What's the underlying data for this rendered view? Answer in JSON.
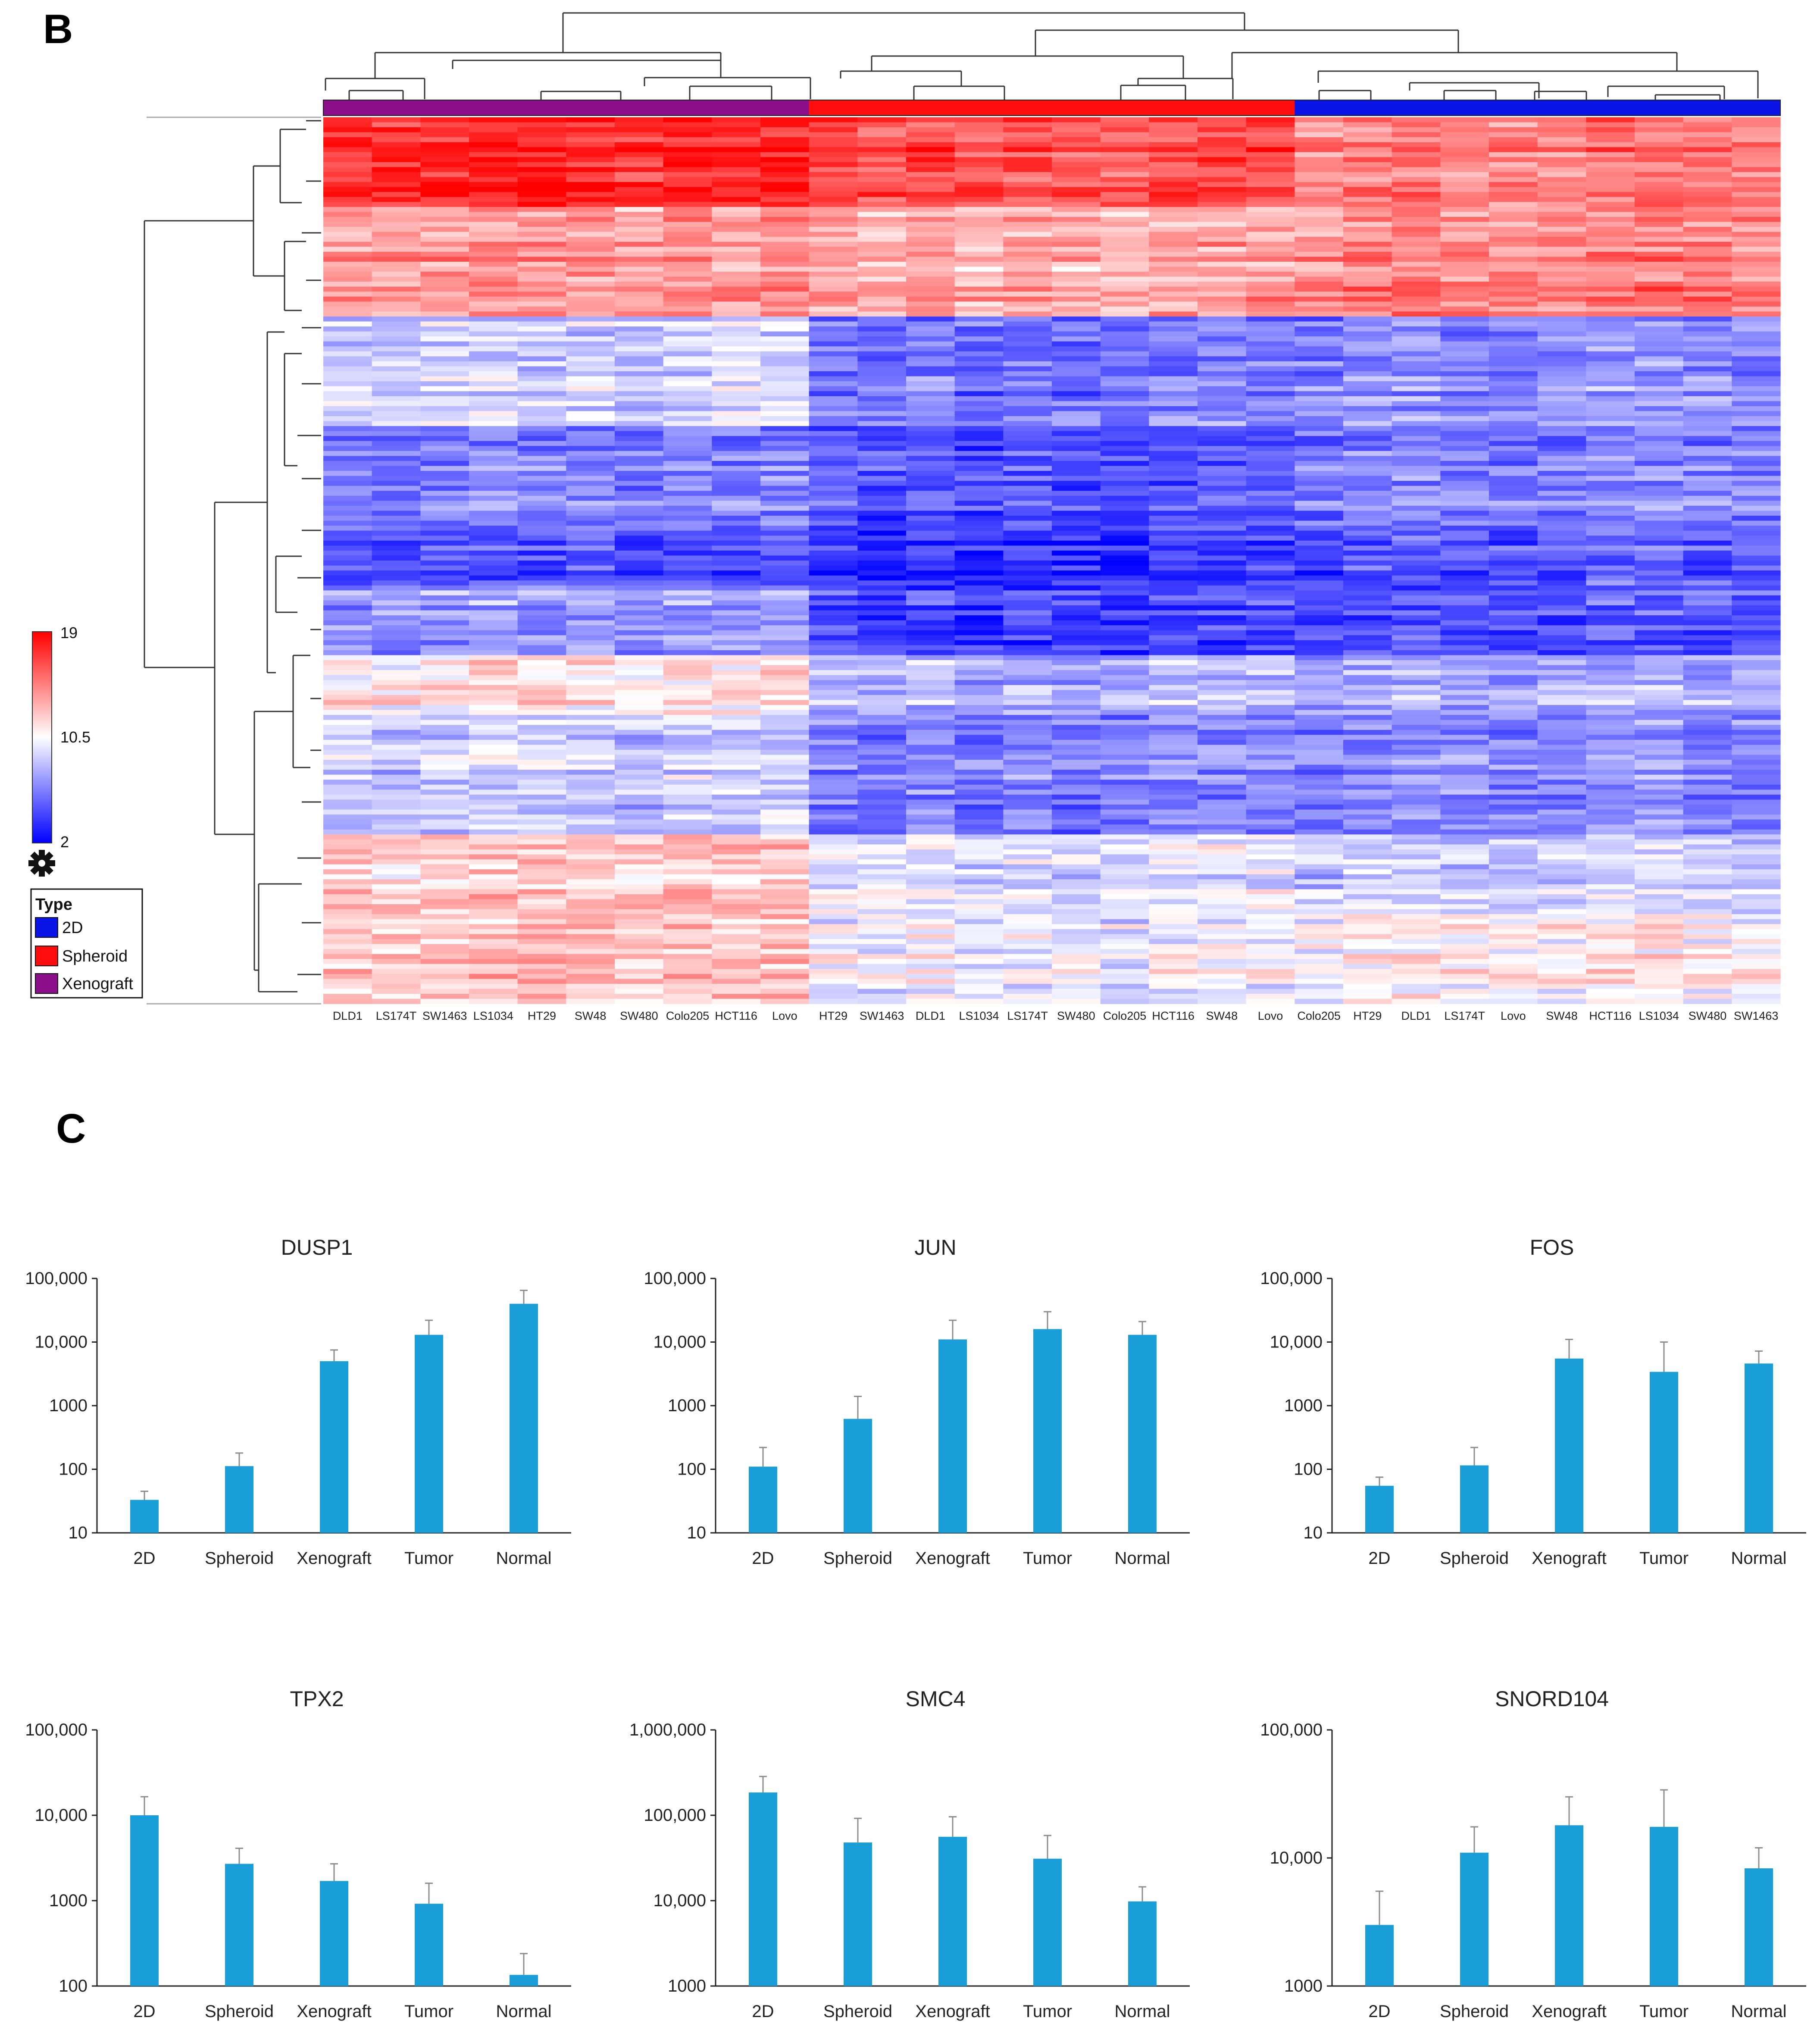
{
  "panels": {
    "heatmap_letter": "B",
    "bars_letter": "C"
  },
  "heatmap": {
    "group_colors": {
      "2D": "#0a14e6",
      "Spheroid": "#ff0d0d",
      "Xenograft": "#8b0f8b"
    },
    "color_scale": {
      "low_color": "#0000ff",
      "mid_color": "#ffffff",
      "high_color": "#ff0000",
      "max_label": "19",
      "mid_label": "10.5",
      "min_label": "2"
    },
    "legend": {
      "title": "Type",
      "items": [
        "2D",
        "Spheroid",
        "Xenograft"
      ]
    },
    "columns": [
      {
        "label": "DLD1",
        "group": "Xenograft"
      },
      {
        "label": "LS174T",
        "group": "Xenograft"
      },
      {
        "label": "SW1463",
        "group": "Xenograft"
      },
      {
        "label": "LS1034",
        "group": "Xenograft"
      },
      {
        "label": "HT29",
        "group": "Xenograft"
      },
      {
        "label": "SW48",
        "group": "Xenograft"
      },
      {
        "label": "SW480",
        "group": "Xenograft"
      },
      {
        "label": "Colo205",
        "group": "Xenograft"
      },
      {
        "label": "HCT116",
        "group": "Xenograft"
      },
      {
        "label": "Lovo",
        "group": "Xenograft"
      },
      {
        "label": "HT29",
        "group": "Spheroid"
      },
      {
        "label": "SW1463",
        "group": "Spheroid"
      },
      {
        "label": "DLD1",
        "group": "Spheroid"
      },
      {
        "label": "LS1034",
        "group": "Spheroid"
      },
      {
        "label": "LS174T",
        "group": "Spheroid"
      },
      {
        "label": "SW480",
        "group": "Spheroid"
      },
      {
        "label": "Colo205",
        "group": "Spheroid"
      },
      {
        "label": "HCT116",
        "group": "Spheroid"
      },
      {
        "label": "SW48",
        "group": "Spheroid"
      },
      {
        "label": "Lovo",
        "group": "Spheroid"
      },
      {
        "label": "Colo205",
        "group": "2D"
      },
      {
        "label": "HT29",
        "group": "2D"
      },
      {
        "label": "DLD1",
        "group": "2D"
      },
      {
        "label": "LS174T",
        "group": "2D"
      },
      {
        "label": "Lovo",
        "group": "2D"
      },
      {
        "label": "SW48",
        "group": "2D"
      },
      {
        "label": "HCT116",
        "group": "2D"
      },
      {
        "label": "LS1034",
        "group": "2D"
      },
      {
        "label": "SW480",
        "group": "2D"
      },
      {
        "label": "SW1463",
        "group": "2D"
      }
    ],
    "row_blocks": [
      {
        "rows": 18,
        "xeno": 17.8,
        "sph": 16.5,
        "twod": 15.0
      },
      {
        "rows": 14,
        "xeno": 13.8,
        "sph": 13.3,
        "twod": 14.4
      },
      {
        "rows": 8,
        "xeno": 13.9,
        "sph": 13.6,
        "twod": 15.0
      },
      {
        "rows": 22,
        "xeno": 8.8,
        "sph": 6.0,
        "twod": 6.8
      },
      {
        "rows": 20,
        "xeno": 6.2,
        "sph": 4.8,
        "twod": 6.4
      },
      {
        "rows": 12,
        "xeno": 4.5,
        "sph": 3.6,
        "twod": 5.0
      },
      {
        "rows": 14,
        "xeno": 7.0,
        "sph": 4.2,
        "twod": 4.8
      },
      {
        "rows": 12,
        "xeno": 11.2,
        "sph": 8.0,
        "twod": 7.8
      },
      {
        "rows": 24,
        "xeno": 8.8,
        "sph": 6.4,
        "twod": 6.8
      },
      {
        "rows": 16,
        "xeno": 12.0,
        "sph": 9.4,
        "twod": 8.8
      },
      {
        "rows": 18,
        "xeno": 12.4,
        "sph": 10.0,
        "twod": 11.0
      }
    ]
  },
  "chart_data": [
    {
      "type": "bar",
      "title": "DUSP1",
      "scale": "log",
      "categories": [
        "2D",
        "Spheroid",
        "Xenograft",
        "Tumor",
        "Normal"
      ],
      "values": [
        33,
        112,
        5000,
        13000,
        40000
      ],
      "error_upper": [
        45,
        180,
        7500,
        22000,
        65000
      ],
      "ylim": [
        10,
        100000
      ],
      "ytick_values": [
        10,
        100,
        1000,
        10000,
        100000
      ],
      "ytick_labels": [
        "10",
        "100",
        "1000",
        "10,000",
        "100,000"
      ],
      "bar_color": "#1a9ed8"
    },
    {
      "type": "bar",
      "title": "JUN",
      "scale": "log",
      "categories": [
        "2D",
        "Spheroid",
        "Xenograft",
        "Tumor",
        "Normal"
      ],
      "values": [
        110,
        620,
        11000,
        16000,
        13000
      ],
      "error_upper": [
        220,
        1400,
        22000,
        30000,
        21000
      ],
      "ylim": [
        10,
        100000
      ],
      "ytick_values": [
        10,
        100,
        1000,
        10000,
        100000
      ],
      "ytick_labels": [
        "10",
        "100",
        "1000",
        "10,000",
        "100,000"
      ],
      "bar_color": "#1a9ed8"
    },
    {
      "type": "bar",
      "title": "FOS",
      "scale": "log",
      "categories": [
        "2D",
        "Spheroid",
        "Xenograft",
        "Tumor",
        "Normal"
      ],
      "values": [
        55,
        115,
        5500,
        3400,
        4600
      ],
      "error_upper": [
        75,
        220,
        11000,
        10000,
        7200
      ],
      "ylim": [
        10,
        100000
      ],
      "ytick_values": [
        10,
        100,
        1000,
        10000,
        100000
      ],
      "ytick_labels": [
        "10",
        "100",
        "1000",
        "10,000",
        "100,000"
      ],
      "bar_color": "#1a9ed8"
    },
    {
      "type": "bar",
      "title": "TPX2",
      "scale": "log",
      "categories": [
        "2D",
        "Spheroid",
        "Xenograft",
        "Tumor",
        "Normal"
      ],
      "values": [
        10000,
        2700,
        1700,
        920,
        135
      ],
      "error_upper": [
        16500,
        4100,
        2700,
        1600,
        240
      ],
      "ylim": [
        100,
        100000
      ],
      "ytick_values": [
        100,
        1000,
        10000,
        100000
      ],
      "ytick_labels": [
        "100",
        "1000",
        "10,000",
        "100,000"
      ],
      "bar_color": "#1a9ed8"
    },
    {
      "type": "bar",
      "title": "SMC4",
      "scale": "log",
      "categories": [
        "2D",
        "Spheroid",
        "Xenograft",
        "Tumor",
        "Normal"
      ],
      "values": [
        185000,
        48000,
        56000,
        31000,
        9800
      ],
      "error_upper": [
        285000,
        92000,
        96000,
        58000,
        14500
      ],
      "ylim": [
        1000,
        1000000
      ],
      "ytick_values": [
        1000,
        10000,
        100000,
        1000000
      ],
      "ytick_labels": [
        "1000",
        "10,000",
        "100,000",
        "1,000,000"
      ],
      "bar_color": "#1a9ed8"
    },
    {
      "type": "bar",
      "title": "SNORD104",
      "scale": "log",
      "categories": [
        "2D",
        "Spheroid",
        "Xenograft",
        "Tumor",
        "Normal"
      ],
      "values": [
        3000,
        11000,
        18000,
        17500,
        8300
      ],
      "error_upper": [
        5500,
        17500,
        30000,
        34000,
        12000
      ],
      "ylim": [
        1000,
        100000
      ],
      "ytick_values": [
        1000,
        10000,
        100000
      ],
      "ytick_labels": [
        "1000",
        "10,000",
        "100,000"
      ],
      "bar_color": "#1a9ed8"
    }
  ]
}
